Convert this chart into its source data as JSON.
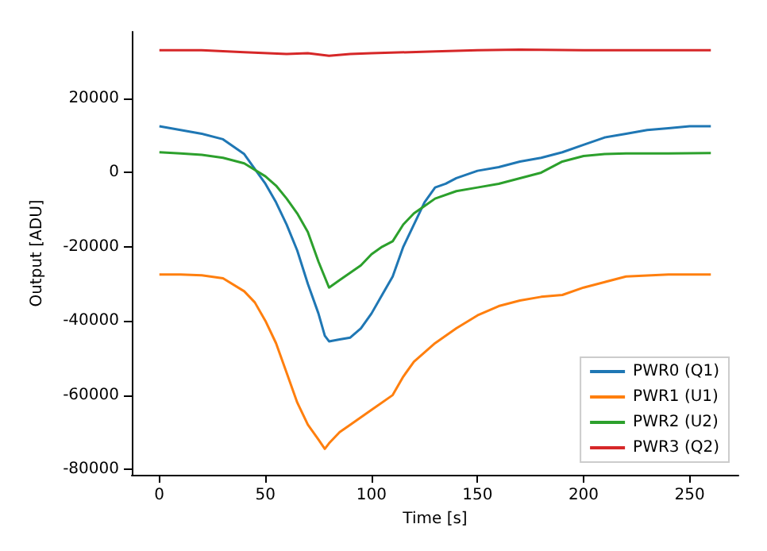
{
  "chart_data": {
    "type": "line",
    "xlabel": "Time [s]",
    "ylabel": "Output [ADU]",
    "xlim": [
      -13,
      273
    ],
    "ylim": [
      -81500,
      38000
    ],
    "xticks": [
      0,
      50,
      100,
      150,
      200,
      250
    ],
    "yticks": [
      -80000,
      -60000,
      -40000,
      -20000,
      0,
      20000
    ],
    "grid": false,
    "legend": "bottom right",
    "marker": "none",
    "line_style": "solid",
    "series": [
      {
        "name": "PWR0 (Q1)",
        "color": "#1f77b4",
        "x": [
          0,
          10,
          20,
          30,
          40,
          45,
          50,
          55,
          60,
          65,
          70,
          75,
          78,
          80,
          85,
          90,
          95,
          100,
          105,
          110,
          115,
          120,
          125,
          130,
          135,
          140,
          150,
          160,
          170,
          180,
          190,
          200,
          210,
          220,
          230,
          240,
          250,
          260
        ],
        "values": [
          12500,
          11500,
          10500,
          9000,
          5000,
          1000,
          -3000,
          -8000,
          -14000,
          -21000,
          -30000,
          -38000,
          -44000,
          -45500,
          -45000,
          -44500,
          -42000,
          -38000,
          -33000,
          -28000,
          -20000,
          -14000,
          -8000,
          -4000,
          -3000,
          -1500,
          500,
          1500,
          3000,
          4000,
          5500,
          7500,
          9500,
          10500,
          11500,
          12000,
          12500,
          12500
        ]
      },
      {
        "name": "PWR1 (U1)",
        "color": "#ff7f0e",
        "x": [
          0,
          10,
          20,
          30,
          40,
          45,
          50,
          55,
          60,
          65,
          70,
          75,
          78,
          80,
          85,
          90,
          100,
          110,
          115,
          120,
          130,
          140,
          150,
          160,
          170,
          180,
          190,
          200,
          210,
          220,
          240,
          260
        ],
        "values": [
          -27500,
          -27500,
          -27700,
          -28500,
          -32000,
          -35000,
          -40000,
          -46000,
          -54000,
          -62000,
          -68000,
          -72000,
          -74500,
          -73000,
          -70000,
          -68000,
          -64000,
          -60000,
          -55000,
          -51000,
          -46000,
          -42000,
          -38500,
          -36000,
          -34500,
          -33500,
          -33000,
          -31000,
          -29500,
          -28000,
          -27500,
          -27500
        ]
      },
      {
        "name": "PWR2 (U2)",
        "color": "#2ca02c",
        "x": [
          0,
          10,
          20,
          30,
          40,
          50,
          55,
          60,
          65,
          70,
          75,
          80,
          85,
          90,
          95,
          100,
          105,
          110,
          115,
          120,
          125,
          130,
          140,
          150,
          160,
          170,
          180,
          190,
          200,
          210,
          220,
          240,
          260
        ],
        "values": [
          5500,
          5200,
          4800,
          4000,
          2500,
          -1000,
          -3500,
          -7000,
          -11000,
          -16000,
          -24000,
          -31000,
          -29000,
          -27000,
          -25000,
          -22000,
          -20000,
          -18500,
          -14000,
          -11000,
          -9000,
          -7000,
          -5000,
          -4000,
          -3000,
          -1500,
          0,
          3000,
          4500,
          5000,
          5200,
          5200,
          5300
        ]
      },
      {
        "name": "PWR3 (Q2)",
        "color": "#d62728",
        "x": [
          0,
          20,
          40,
          60,
          70,
          80,
          90,
          100,
          130,
          150,
          170,
          200,
          230,
          260
        ],
        "values": [
          33000,
          33000,
          32500,
          32000,
          32200,
          31500,
          32000,
          32200,
          32700,
          33000,
          33200,
          33000,
          33000,
          33000
        ]
      }
    ]
  }
}
